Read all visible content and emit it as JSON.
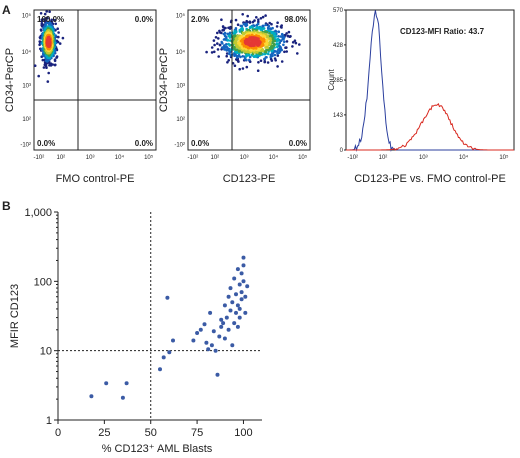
{
  "figure": {
    "panel_a_letter": "A",
    "panel_b_letter": "B"
  },
  "chart_data": [
    {
      "type": "scatter",
      "panel": "A-left",
      "xlabel": "FMO control-PE",
      "ylabel": "CD34-PerCP",
      "x_ticks": [
        "-10²",
        "10²",
        "10³",
        "10⁴",
        "10⁵"
      ],
      "y_ticks": [
        "10⁵",
        "10⁴",
        "10³",
        "10²",
        "-10²"
      ],
      "quadrants": {
        "ul": "100.0%",
        "ur": "0.0%",
        "ll": "0.0%",
        "lr": "0.0%"
      },
      "population_center": {
        "x": 0,
        "y": 20000
      }
    },
    {
      "type": "scatter",
      "panel": "A-middle",
      "xlabel": "CD123-PE",
      "ylabel": "CD34-PerCP",
      "x_ticks": [
        "-10²",
        "10²",
        "10³",
        "10⁴",
        "10⁵"
      ],
      "y_ticks": [
        "10⁵",
        "10⁴",
        "10³",
        "10²",
        "-10²"
      ],
      "quadrants": {
        "ul": "2.0%",
        "ur": "98.0%",
        "ll": "0.0%",
        "lr": "0.0%"
      },
      "population_center": {
        "x": 2000,
        "y": 20000
      }
    },
    {
      "type": "line",
      "panel": "A-right",
      "xlabel": "CD123-PE vs. FMO control-PE",
      "ylabel": "Count",
      "annotation": "CD123-MFI Ratio: 43.7",
      "x_ticks": [
        "-10²",
        "10²",
        "10³",
        "10⁴",
        "10⁵"
      ],
      "y_ticks": [
        "570",
        "428",
        "285",
        "143",
        "0"
      ],
      "ylim": [
        0,
        570
      ],
      "series": [
        {
          "color": "#2b3f9e",
          "peak_x": 60,
          "peak_count": 560
        },
        {
          "color": "#d8281f",
          "peak_x": 2200,
          "peak_count": 185
        }
      ]
    },
    {
      "type": "scatter",
      "panel": "B",
      "xlabel": "% CD123⁺ AML Blasts",
      "ylabel": "MFIR CD123",
      "x_ticks": [
        "0",
        "25",
        "50",
        "75",
        "100"
      ],
      "y_ticks": [
        "1,000",
        "100",
        "10",
        "1"
      ],
      "xlim": [
        0,
        110
      ],
      "ylim": [
        1,
        1000
      ],
      "y_scale": "log",
      "reference_lines": {
        "x": 50,
        "y": 10
      },
      "point_color": "#3b5ba5",
      "x": [
        18,
        26,
        35,
        37,
        55,
        57,
        59,
        60,
        62,
        73,
        75,
        77,
        79,
        80,
        81,
        82,
        83,
        84,
        85,
        86,
        87,
        88,
        88,
        89,
        90,
        90,
        91,
        92,
        92,
        93,
        93,
        94,
        94,
        95,
        95,
        96,
        96,
        97,
        97,
        97,
        98,
        98,
        98,
        99,
        99,
        99,
        100,
        100,
        100,
        101,
        101,
        102
      ],
      "y": [
        2.2,
        3.4,
        2.1,
        3.4,
        5.4,
        8,
        58,
        9.5,
        14,
        14,
        18,
        20,
        24,
        13,
        10.5,
        35,
        12,
        19,
        10,
        4.5,
        16,
        22,
        28,
        25,
        15,
        45,
        30,
        60,
        20,
        38,
        80,
        12,
        50,
        25,
        110,
        35,
        65,
        22,
        45,
        150,
        30,
        90,
        40,
        55,
        130,
        70,
        220,
        100,
        170,
        60,
        35,
        85
      ]
    }
  ]
}
